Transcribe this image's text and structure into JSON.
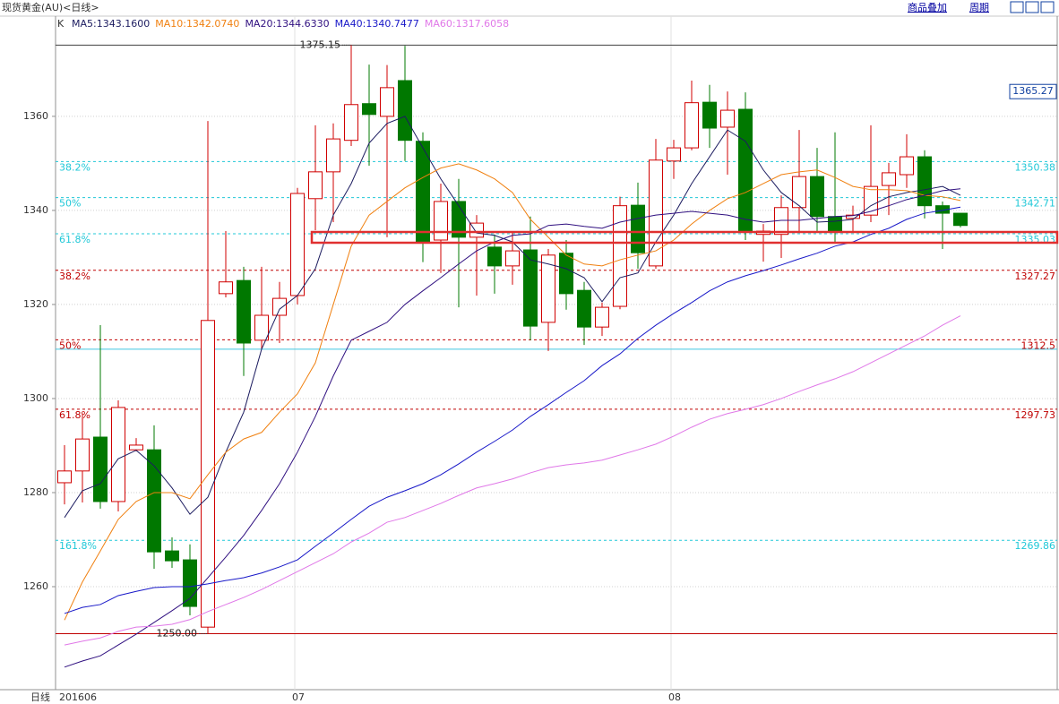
{
  "header": {
    "title": "现货黄金(AU)<日线>",
    "buttons": [
      "商品叠加",
      "周期"
    ]
  },
  "chart_data": {
    "type": "candlestick",
    "period_label": "日线",
    "legend_label": "K",
    "categories": [
      "201606",
      null,
      null,
      null,
      null,
      null,
      null,
      null,
      null,
      null,
      null,
      null,
      null,
      "07",
      null,
      null,
      null,
      null,
      null,
      null,
      null,
      null,
      null,
      null,
      null,
      null,
      null,
      null,
      null,
      null,
      null,
      null,
      null,
      null,
      "08",
      null,
      null,
      null,
      null,
      null,
      null,
      null,
      null,
      null,
      null,
      null,
      null,
      null,
      null,
      null,
      null
    ],
    "open": [
      1282.1,
      1284.6,
      1291.8,
      1278.1,
      1289.1,
      1289.1,
      1267.6,
      1265.7,
      1251.4,
      1322.3,
      1325.1,
      1312.4,
      1317.7,
      1321.9,
      1342.5,
      1348.2,
      1354.9,
      1362.7,
      1360.0,
      1367.6,
      1354.7,
      1333.7,
      1341.9,
      1334.3,
      1332.2,
      1328.2,
      1331.6,
      1316.2,
      1330.9,
      1323.0,
      1315.2,
      1319.6,
      1341.1,
      1328.2,
      1350.5,
      1353.3,
      1363.0,
      1357.7,
      1361.5,
      1334.9,
      1334.9,
      1340.6,
      1347.2,
      1338.7,
      1338.3,
      1339.0,
      1345.3,
      1347.6,
      1351.4,
      1341.0,
      1339.4
    ],
    "high": [
      1290.1,
      1296.8,
      1315.6,
      1299.6,
      1291.6,
      1294.3,
      1270.5,
      1269.0,
      1359.0,
      1335.6,
      1328.0,
      1328.0,
      1324.8,
      1344.8,
      1358.1,
      1358.5,
      1375.15,
      1371.0,
      1370.9,
      1375.0,
      1356.6,
      1345.7,
      1346.7,
      1339.0,
      1334.9,
      1335.6,
      1338.7,
      1331.8,
      1333.7,
      1324.8,
      1320.4,
      1342.9,
      1345.9,
      1355.2,
      1355.0,
      1367.6,
      1366.7,
      1365.3,
      1365.1,
      1337.1,
      1343.2,
      1357.1,
      1353.3,
      1356.6,
      1341.0,
      1358.1,
      1350.1,
      1356.2,
      1352.8,
      1341.9,
      1339.4
    ],
    "low": [
      1277.5,
      1277.9,
      1276.6,
      1276.0,
      1288.8,
      1263.8,
      1264.0,
      1253.9,
      1250,
      1321.5,
      1304.8,
      1310.5,
      1311.8,
      1320.0,
      1335.8,
      1337.5,
      1353.7,
      1349.5,
      1334.3,
      1350.5,
      1329.0,
      1326.7,
      1319.4,
      1321.9,
      1322.3,
      1324.2,
      1312.4,
      1310.1,
      1318.9,
      1311.4,
      1313.3,
      1319.0,
      1327.6,
      1327.6,
      1346.7,
      1352.8,
      1353.3,
      1347.6,
      1333.7,
      1329.1,
      1329.9,
      1335.2,
      1335.6,
      1333.0,
      1335.6,
      1337.5,
      1339.0,
      1344.8,
      1338.3,
      1331.8,
      1336.4
    ],
    "close": [
      1284.6,
      1291.4,
      1278.1,
      1298.1,
      1290.1,
      1267.4,
      1265.5,
      1255.8,
      1316.6,
      1324.8,
      1311.8,
      1317.7,
      1321.3,
      1343.6,
      1348.2,
      1355.2,
      1362.5,
      1360.4,
      1366.1,
      1354.9,
      1333.3,
      1341.9,
      1334.3,
      1337.3,
      1328.2,
      1331.4,
      1315.4,
      1330.5,
      1322.3,
      1315.2,
      1319.4,
      1341.0,
      1331.0,
      1350.7,
      1353.3,
      1362.9,
      1357.5,
      1361.3,
      1335.6,
      1335.6,
      1340.6,
      1347.2,
      1338.7,
      1335.6,
      1339.0,
      1345.1,
      1348.0,
      1351.4,
      1341.0,
      1339.4,
      1336.8
    ],
    "up_color": "#d00000",
    "down_color": "#007800",
    "series": [
      {
        "name": "MA5:1343.1600",
        "color": "#1c1c60",
        "values": [
          1274.7,
          1280.4,
          1281.9,
          1287.2,
          1289.0,
          1285.7,
          1281.0,
          1275.4,
          1279.0,
          1288.6,
          1297.1,
          1310.5,
          1319.0,
          1321.9,
          1327.6,
          1339.0,
          1345.7,
          1354.3,
          1358.5,
          1360.0,
          1353.3,
          1346.7,
          1341.0,
          1335.2,
          1334.7,
          1333.3,
          1329.5,
          1328.6,
          1327.6,
          1325.7,
          1320.6,
          1325.7,
          1326.7,
          1333.3,
          1339.0,
          1345.7,
          1351.4,
          1357.1,
          1354.7,
          1348.6,
          1343.8,
          1341.0,
          1337.5,
          1337.7,
          1338.1,
          1341.0,
          1342.9,
          1343.8,
          1344.4,
          1345.1,
          1343.2
        ]
      },
      {
        "name": "MA10:1342.0740",
        "color": "#f08010",
        "values": [
          1252.9,
          1261.0,
          1267.6,
          1274.3,
          1278.1,
          1280.0,
          1280.0,
          1278.7,
          1283.8,
          1288.6,
          1291.4,
          1292.8,
          1297.1,
          1301.0,
          1307.6,
          1320.0,
          1332.4,
          1339.0,
          1341.9,
          1344.8,
          1347.0,
          1349.0,
          1349.9,
          1348.6,
          1346.7,
          1343.8,
          1338.1,
          1334.3,
          1330.5,
          1328.6,
          1328.2,
          1329.5,
          1330.5,
          1331.4,
          1333.7,
          1337.1,
          1340.0,
          1342.5,
          1343.8,
          1345.7,
          1347.6,
          1348.2,
          1348.6,
          1347.0,
          1345.1,
          1344.4,
          1344.4,
          1344.2,
          1343.2,
          1342.9,
          1342.1
        ]
      },
      {
        "name": "MA20:1344.6330",
        "color": "#301080",
        "values": [
          1242.9,
          1244.2,
          1245.3,
          1247.6,
          1249.9,
          1252.4,
          1254.9,
          1257.5,
          1261.9,
          1266.3,
          1270.9,
          1276.2,
          1281.9,
          1288.6,
          1296.2,
          1304.8,
          1312.4,
          1314.3,
          1316.2,
          1320.0,
          1322.9,
          1325.7,
          1328.6,
          1331.4,
          1333.3,
          1334.7,
          1335.0,
          1336.8,
          1337.1,
          1336.6,
          1336.2,
          1337.5,
          1338.3,
          1339.0,
          1339.4,
          1339.8,
          1339.4,
          1339.0,
          1338.1,
          1337.5,
          1337.9,
          1337.9,
          1338.3,
          1338.7,
          1338.9,
          1339.8,
          1341.0,
          1342.3,
          1343.2,
          1344.2,
          1344.6
        ]
      },
      {
        "name": "MA40:1340.7477",
        "color": "#1818c8",
        "values": [
          1254.3,
          1255.6,
          1256.2,
          1258.1,
          1259.0,
          1259.8,
          1260.0,
          1260.0,
          1260.6,
          1261.3,
          1261.9,
          1262.9,
          1264.2,
          1265.7,
          1268.6,
          1271.4,
          1274.3,
          1277.1,
          1279.0,
          1280.4,
          1281.9,
          1283.8,
          1286.1,
          1288.6,
          1290.9,
          1293.3,
          1296.2,
          1298.7,
          1301.3,
          1303.8,
          1307.0,
          1309.5,
          1312.8,
          1315.6,
          1318.1,
          1320.4,
          1322.9,
          1324.8,
          1326.1,
          1327.2,
          1328.4,
          1329.7,
          1330.9,
          1332.4,
          1333.3,
          1334.9,
          1336.2,
          1338.1,
          1339.4,
          1340.0,
          1340.7
        ]
      },
      {
        "name": "MA60:1317.6058",
        "color": "#e078e8",
        "values": [
          1247.6,
          1248.4,
          1249.1,
          1250.5,
          1251.4,
          1251.6,
          1252.0,
          1253.0,
          1254.7,
          1256.2,
          1257.7,
          1259.4,
          1261.3,
          1263.2,
          1265.1,
          1267.0,
          1269.5,
          1271.4,
          1273.7,
          1274.7,
          1276.2,
          1277.7,
          1279.4,
          1281.0,
          1281.9,
          1282.9,
          1284.2,
          1285.3,
          1285.9,
          1286.3,
          1286.9,
          1288.0,
          1289.1,
          1290.3,
          1292.0,
          1293.9,
          1295.6,
          1296.8,
          1297.7,
          1298.7,
          1300.0,
          1301.5,
          1302.9,
          1304.2,
          1305.7,
          1307.6,
          1309.5,
          1311.4,
          1313.3,
          1315.6,
          1317.6
        ]
      }
    ],
    "ylim": [
      1238.1,
      1377.5
    ],
    "yticks": [
      1260,
      1280,
      1300,
      1320,
      1340,
      1360
    ],
    "grid": true,
    "levels": [
      {
        "value": 1350.38,
        "ratio": "38.2%",
        "color": "#20c8d8"
      },
      {
        "value": 1342.71,
        "ratio": "50%",
        "color": "#20c8d8"
      },
      {
        "value": 1335.03,
        "ratio": "61.8%",
        "color": "#20c8d8"
      },
      {
        "value": 1269.86,
        "ratio": "161.8%",
        "color": "#20c8d8"
      },
      {
        "value": 1327.27,
        "ratio": "38.2%",
        "color": "#c00000"
      },
      {
        "value": 1312.5,
        "ratio": "50%",
        "color": "#c00000"
      },
      {
        "value": 1297.73,
        "ratio": "61.8%",
        "color": "#c00000"
      }
    ],
    "bounds": [
      {
        "value": 1375.15,
        "color": "#404040"
      },
      {
        "value": 1250,
        "color": "#c00000"
      }
    ],
    "price_line": {
      "value": 1310.5,
      "color": "#40c8e0"
    },
    "cursor_price": 1365.27,
    "extremes": [
      {
        "index": 16,
        "value": 1375.15
      },
      {
        "index": 8,
        "value": 1250,
        "label": "1250.00"
      }
    ]
  }
}
